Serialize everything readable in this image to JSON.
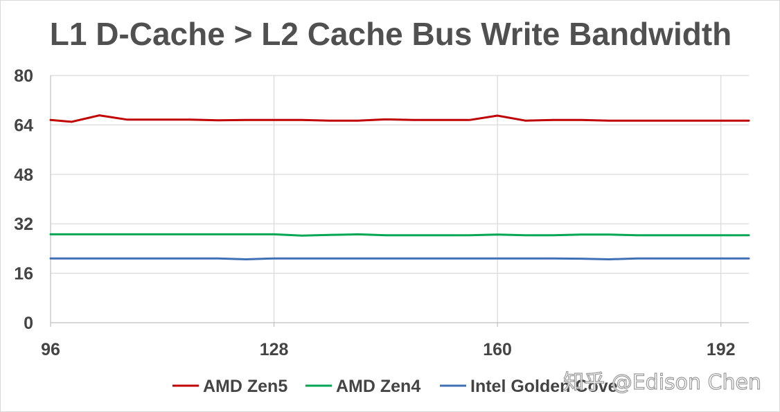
{
  "chart_data": {
    "type": "line",
    "title": "L1 D-Cache > L2 Cache Bus Write Bandwidth",
    "xlabel": "",
    "ylabel": "",
    "xlim": [
      96,
      196
    ],
    "ylim": [
      0,
      80
    ],
    "x_ticks": [
      96,
      128,
      160,
      192
    ],
    "y_ticks": [
      0,
      16,
      32,
      48,
      64,
      80
    ],
    "grid": true,
    "legend_position": "bottom",
    "x": [
      96,
      99,
      103,
      107,
      112,
      116,
      120,
      124,
      128,
      132,
      136,
      140,
      144,
      148,
      152,
      156,
      160,
      164,
      168,
      172,
      176,
      180,
      184,
      188,
      192,
      196
    ],
    "series": [
      {
        "name": "AMD Zen5",
        "color": "#c00000",
        "values": [
          65.6,
          65.0,
          67.1,
          65.7,
          65.7,
          65.7,
          65.5,
          65.6,
          65.6,
          65.6,
          65.4,
          65.4,
          65.8,
          65.6,
          65.6,
          65.6,
          67.0,
          65.4,
          65.6,
          65.6,
          65.4,
          65.4,
          65.4,
          65.4,
          65.4,
          65.4
        ]
      },
      {
        "name": "AMD Zen4",
        "color": "#00a651",
        "values": [
          28.6,
          28.6,
          28.6,
          28.6,
          28.6,
          28.6,
          28.6,
          28.6,
          28.6,
          28.2,
          28.4,
          28.6,
          28.3,
          28.3,
          28.3,
          28.3,
          28.5,
          28.3,
          28.3,
          28.5,
          28.5,
          28.3,
          28.3,
          28.3,
          28.3,
          28.3
        ]
      },
      {
        "name": "Intel Golden Cove",
        "color": "#3f6fb5",
        "values": [
          20.8,
          20.8,
          20.8,
          20.8,
          20.8,
          20.8,
          20.8,
          20.5,
          20.8,
          20.8,
          20.8,
          20.8,
          20.8,
          20.8,
          20.8,
          20.8,
          20.8,
          20.8,
          20.8,
          20.7,
          20.5,
          20.8,
          20.8,
          20.8,
          20.8,
          20.8
        ]
      }
    ]
  },
  "watermark": "知乎 @Edison Chen"
}
